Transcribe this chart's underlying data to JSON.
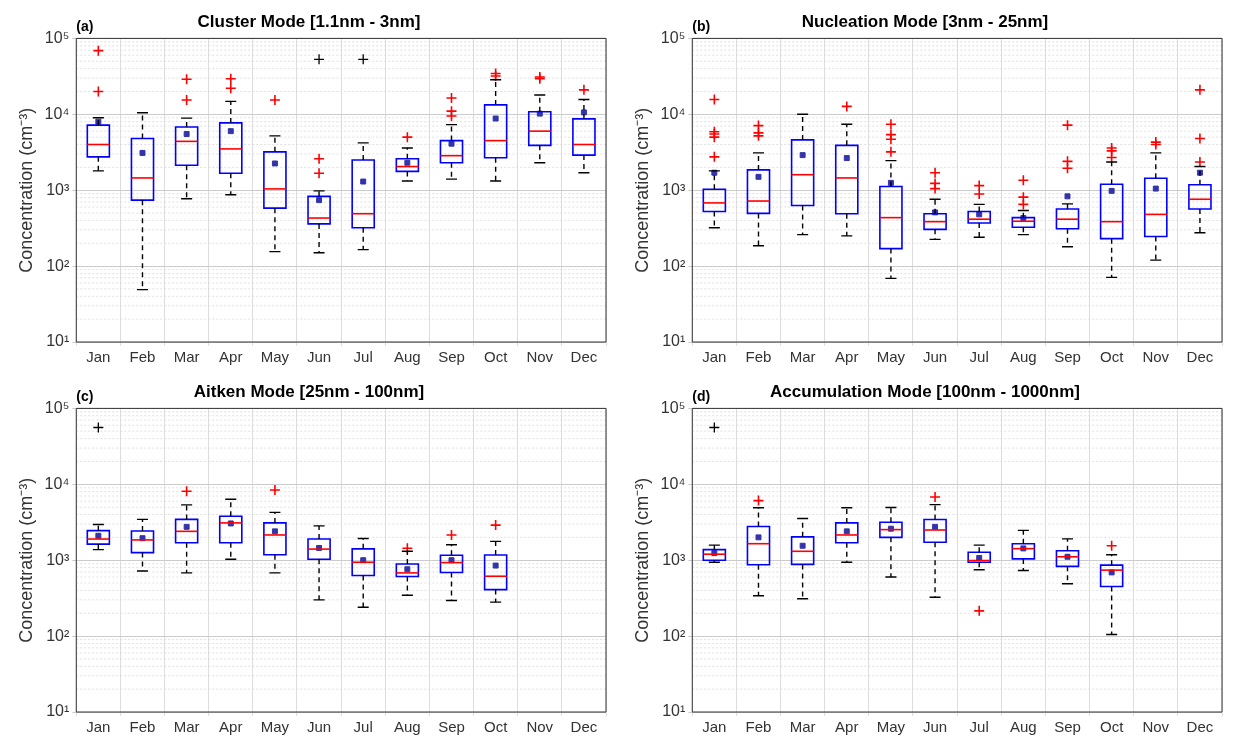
{
  "chart_data": [
    {
      "type": "box",
      "title": "Cluster Mode [1.1nm - 3nm]",
      "ylabel": "Concentration (cm⁻³)",
      "annotations": [
        "(a)"
      ],
      "log": true,
      "grid": true,
      "color": "#0000ff",
      "ylim": [
        10,
        100000
      ],
      "yticks": [
        {
          "value": 10,
          "label": "10¹"
        },
        {
          "value": 100,
          "label": "10²"
        },
        {
          "value": 1000,
          "label": "10³"
        },
        {
          "value": 10000,
          "label": "10⁴"
        },
        {
          "value": 100000,
          "label": "10⁵"
        }
      ],
      "categories": [
        "Jan",
        "Feb",
        "Mar",
        "Apr",
        "May",
        "Jun",
        "Jul",
        "Aug",
        "Sep",
        "Oct",
        "Nov",
        "Dec"
      ],
      "boxes": [
        {
          "low": 1800,
          "q1": 2750,
          "median": 4000,
          "q3": 7200,
          "high": 9000,
          "mean": 8000,
          "outliers": [
            69000,
            20000
          ]
        },
        {
          "low": 49,
          "q1": 740,
          "median": 1450,
          "q3": 4800,
          "high": 10500,
          "mean": 3100
        },
        {
          "low": 770,
          "q1": 2130,
          "median": 4400,
          "q3": 6800,
          "high": 8900,
          "mean": 5500,
          "outliers": [
            29000,
            15400
          ]
        },
        {
          "low": 870,
          "q1": 1670,
          "median": 3500,
          "q3": 7700,
          "high": 14800,
          "mean": 6000,
          "outliers": [
            29400,
            22000
          ]
        },
        {
          "low": 155,
          "q1": 580,
          "median": 1040,
          "q3": 3200,
          "high": 5200,
          "mean": 2250,
          "outliers": [
            15400
          ]
        },
        {
          "low": 150,
          "q1": 360,
          "median": 430,
          "q3": 830,
          "high": 980,
          "mean": 740,
          "outliers": [
            2600,
            1670
          ]
        },
        {
          "low": 165,
          "q1": 320,
          "median": 490,
          "q3": 2500,
          "high": 4200,
          "mean": 1300
        },
        {
          "low": 1320,
          "q1": 1770,
          "median": 2050,
          "q3": 2600,
          "high": 3600,
          "mean": 2300,
          "outliers": [
            5000
          ]
        },
        {
          "low": 1400,
          "q1": 2300,
          "median": 2850,
          "q3": 4500,
          "high": 7300,
          "mean": 4100,
          "outliers": [
            16400,
            11000,
            9500
          ]
        },
        {
          "low": 1320,
          "q1": 2680,
          "median": 4500,
          "q3": 13300,
          "high": 28500,
          "mean": 8800,
          "outliers": [
            34500,
            32000
          ]
        },
        {
          "low": 2300,
          "q1": 3900,
          "median": 6000,
          "q3": 10800,
          "high": 18000,
          "mean": 10200,
          "outliers": [
            31000,
            29500
          ]
        },
        {
          "low": 1700,
          "q1": 2900,
          "median": 4000,
          "q3": 8700,
          "high": 15700,
          "mean": 10600,
          "outliers": [
            21000
          ]
        }
      ],
      "series": [
        {
          "type": "scatter",
          "marker": "cross",
          "color": "#000000",
          "x": [
            "Jun",
            "Jul"
          ],
          "values": [
            53000,
            53000
          ]
        }
      ]
    },
    {
      "type": "box",
      "title": "Nucleation Mode [3nm - 25nm]",
      "ylabel": "Concentration (cm⁻³)",
      "annotations": [
        "(b)"
      ],
      "log": true,
      "grid": true,
      "color": "#0000ff",
      "ylim": [
        10,
        100000
      ],
      "yticks": [
        {
          "value": 10,
          "label": "10¹"
        },
        {
          "value": 100,
          "label": "10²"
        },
        {
          "value": 1000,
          "label": "10³"
        },
        {
          "value": 10000,
          "label": "10⁴"
        },
        {
          "value": 100000,
          "label": "10⁵"
        }
      ],
      "categories": [
        "Jan",
        "Feb",
        "Mar",
        "Apr",
        "May",
        "Jun",
        "Jul",
        "Aug",
        "Sep",
        "Oct",
        "Nov",
        "Dec"
      ],
      "boxes": [
        {
          "low": 320,
          "q1": 525,
          "median": 680,
          "q3": 1030,
          "high": 1800,
          "mean": 1700,
          "outliers": [
            15700,
            5900,
            5500,
            5000,
            2750
          ]
        },
        {
          "low": 185,
          "q1": 495,
          "median": 720,
          "q3": 1850,
          "high": 3100,
          "mean": 1500,
          "outliers": [
            7100,
            5700,
            5200
          ]
        },
        {
          "low": 260,
          "q1": 630,
          "median": 1600,
          "q3": 4600,
          "high": 10000,
          "mean": 2900
        },
        {
          "low": 250,
          "q1": 490,
          "median": 1450,
          "q3": 3900,
          "high": 7400,
          "mean": 2650,
          "outliers": [
            12700
          ]
        },
        {
          "low": 69,
          "q1": 170,
          "median": 435,
          "q3": 1120,
          "high": 2450,
          "mean": 1250,
          "outliers": [
            7400,
            5400,
            4700,
            3200
          ]
        },
        {
          "low": 225,
          "q1": 305,
          "median": 385,
          "q3": 490,
          "high": 760,
          "mean": 510,
          "outliers": [
            1700,
            1230,
            1050
          ]
        },
        {
          "low": 240,
          "q1": 370,
          "median": 415,
          "q3": 525,
          "high": 650,
          "mean": 480,
          "outliers": [
            1150,
            890
          ]
        },
        {
          "low": 260,
          "q1": 325,
          "median": 390,
          "q3": 435,
          "high": 540,
          "mean": 430,
          "outliers": [
            1350,
            810,
            650
          ]
        },
        {
          "low": 180,
          "q1": 310,
          "median": 415,
          "q3": 565,
          "high": 660,
          "mean": 830,
          "outliers": [
            7200,
            2400,
            1950
          ]
        },
        {
          "low": 71,
          "q1": 230,
          "median": 385,
          "q3": 1200,
          "high": 2350,
          "mean": 980,
          "outliers": [
            3600,
            3300,
            2700
          ]
        },
        {
          "low": 120,
          "q1": 245,
          "median": 480,
          "q3": 1440,
          "high": 3100,
          "mean": 1050,
          "outliers": [
            4300,
            4000
          ]
        },
        {
          "low": 275,
          "q1": 565,
          "median": 760,
          "q3": 1180,
          "high": 2050,
          "mean": 1700,
          "outliers": [
            21000,
            4800,
            2350
          ]
        }
      ]
    },
    {
      "type": "box",
      "title": "Aitken Mode [25nm - 100nm]",
      "ylabel": "Concentration (cm⁻³)",
      "annotations": [
        "(c)"
      ],
      "log": true,
      "grid": true,
      "color": "#0000ff",
      "ylim": [
        10,
        100000
      ],
      "yticks": [
        {
          "value": 10,
          "label": "10¹"
        },
        {
          "value": 100,
          "label": "10²"
        },
        {
          "value": 1000,
          "label": "10³"
        },
        {
          "value": 10000,
          "label": "10⁴"
        },
        {
          "value": 100000,
          "label": "10⁵"
        }
      ],
      "categories": [
        "Jan",
        "Feb",
        "Mar",
        "Apr",
        "May",
        "Jun",
        "Jul",
        "Aug",
        "Sep",
        "Oct",
        "Nov",
        "Dec"
      ],
      "boxes": [
        {
          "low": 1380,
          "q1": 1630,
          "median": 1900,
          "q3": 2450,
          "high": 2950,
          "mean": 2100
        },
        {
          "low": 720,
          "q1": 1260,
          "median": 1850,
          "q3": 2420,
          "high": 3450,
          "mean": 1950
        },
        {
          "low": 680,
          "q1": 1700,
          "median": 2400,
          "q3": 3450,
          "high": 5350,
          "mean": 2750,
          "outliers": [
            8100
          ]
        },
        {
          "low": 1030,
          "q1": 1700,
          "median": 3100,
          "q3": 3800,
          "high": 6350,
          "mean": 3050
        },
        {
          "low": 680,
          "q1": 1180,
          "median": 2150,
          "q3": 3100,
          "high": 4270,
          "mean": 2400,
          "outliers": [
            8400
          ]
        },
        {
          "low": 300,
          "q1": 1030,
          "median": 1400,
          "q3": 1900,
          "high": 2830,
          "mean": 1450
        },
        {
          "low": 240,
          "q1": 630,
          "median": 940,
          "q3": 1410,
          "high": 1930,
          "mean": 1000
        },
        {
          "low": 345,
          "q1": 610,
          "median": 680,
          "q3": 890,
          "high": 1310,
          "mean": 760,
          "outliers": [
            1440
          ]
        },
        {
          "low": 295,
          "q1": 690,
          "median": 930,
          "q3": 1160,
          "high": 1600,
          "mean": 1000,
          "outliers": [
            2150
          ]
        },
        {
          "low": 280,
          "q1": 410,
          "median": 615,
          "q3": 1170,
          "high": 1770,
          "mean": 850,
          "outliers": [
            2900
          ]
        },
        null,
        null
      ],
      "series": [
        {
          "type": "scatter",
          "marker": "cross",
          "color": "#000000",
          "x": [
            "Jan"
          ],
          "values": [
            56000
          ]
        }
      ]
    },
    {
      "type": "box",
      "title": "Accumulation Mode [100nm - 1000nm]",
      "ylabel": "Concentration (cm⁻³)",
      "annotations": [
        "(d)"
      ],
      "log": true,
      "grid": true,
      "color": "#0000ff",
      "ylim": [
        10,
        100000
      ],
      "yticks": [
        {
          "value": 10,
          "label": "10¹"
        },
        {
          "value": 100,
          "label": "10²"
        },
        {
          "value": 1000,
          "label": "10³"
        },
        {
          "value": 10000,
          "label": "10⁴"
        },
        {
          "value": 100000,
          "label": "10⁵"
        }
      ],
      "categories": [
        "Jan",
        "Feb",
        "Mar",
        "Apr",
        "May",
        "Jun",
        "Jul",
        "Aug",
        "Sep",
        "Oct",
        "Nov",
        "Dec"
      ],
      "boxes": [
        {
          "low": 940,
          "q1": 1000,
          "median": 1200,
          "q3": 1380,
          "high": 1580,
          "mean": 1240
        },
        {
          "low": 340,
          "q1": 870,
          "median": 1650,
          "q3": 2780,
          "high": 4900,
          "mean": 2000,
          "outliers": [
            6100
          ]
        },
        {
          "low": 310,
          "q1": 880,
          "median": 1310,
          "q3": 2030,
          "high": 3550,
          "mean": 1550
        },
        {
          "low": 940,
          "q1": 1700,
          "median": 2150,
          "q3": 3100,
          "high": 4900,
          "mean": 2400
        },
        {
          "low": 600,
          "q1": 2000,
          "median": 2530,
          "q3": 3160,
          "high": 4950,
          "mean": 2600
        },
        {
          "low": 325,
          "q1": 1720,
          "median": 2500,
          "q3": 3430,
          "high": 5400,
          "mean": 2750,
          "outliers": [
            6800
          ]
        },
        {
          "low": 750,
          "q1": 940,
          "median": 990,
          "q3": 1270,
          "high": 1580,
          "mean": 1070,
          "outliers": [
            215
          ]
        },
        {
          "low": 730,
          "q1": 1040,
          "median": 1420,
          "q3": 1650,
          "high": 2470,
          "mean": 1430
        },
        {
          "low": 490,
          "q1": 830,
          "median": 1110,
          "q3": 1330,
          "high": 1910,
          "mean": 1110
        },
        {
          "low": 105,
          "q1": 450,
          "median": 740,
          "q3": 860,
          "high": 1180,
          "mean": 690,
          "outliers": [
            1550
          ]
        },
        null,
        null
      ],
      "series": [
        {
          "type": "scatter",
          "marker": "cross",
          "color": "#000000",
          "x": [
            "Jan"
          ],
          "values": [
            56000
          ]
        }
      ]
    }
  ]
}
